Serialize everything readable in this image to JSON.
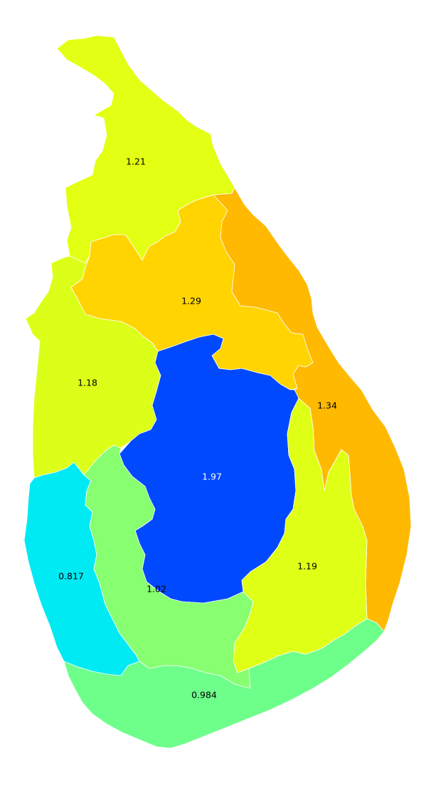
{
  "map": {
    "provinces": [
      {
        "id": "northern",
        "value_label": "1.21",
        "color": "#e3ff13",
        "label_color": "#000000"
      },
      {
        "id": "north-central",
        "value_label": "1.29",
        "color": "#ffd400",
        "label_color": "#000000"
      },
      {
        "id": "eastern",
        "value_label": "1.34",
        "color": "#ffb900",
        "label_color": "#000000"
      },
      {
        "id": "north-western",
        "value_label": "1.18",
        "color": "#dcff1a",
        "label_color": "#000000"
      },
      {
        "id": "central",
        "value_label": "1.97",
        "color": "#0049ff",
        "label_color": "#ffffff"
      },
      {
        "id": "uva",
        "value_label": "1.19",
        "color": "#e0ff17",
        "label_color": "#000000"
      },
      {
        "id": "western",
        "value_label": "0.817",
        "color": "#00eaf4",
        "label_color": "#000000"
      },
      {
        "id": "sabaragamuwa",
        "value_label": "1.02",
        "color": "#87ff70",
        "label_color": "#000000"
      },
      {
        "id": "southern",
        "value_label": "0.984",
        "color": "#6dff8a",
        "label_color": "#000000"
      }
    ]
  }
}
